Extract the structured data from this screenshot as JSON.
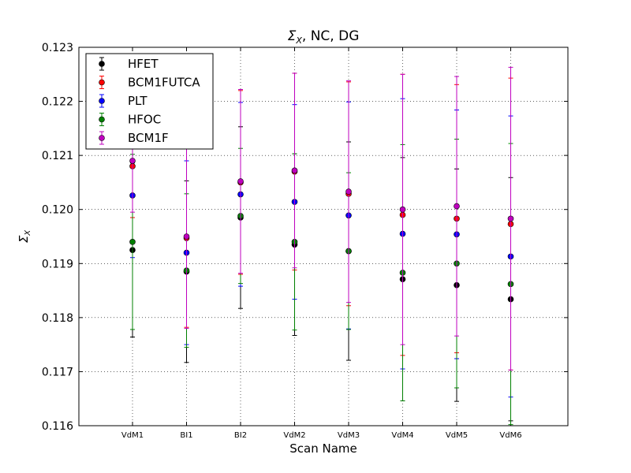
{
  "chart_data": {
    "type": "scatter",
    "title_main": "Σ",
    "title_sub": "X",
    "title_rest": ", NC, DG",
    "xlabel": "Scan Name",
    "ylabel_main": "Σ",
    "ylabel_sub": "X",
    "categories": [
      "VdM1",
      "BI1",
      "BI2",
      "VdM2",
      "VdM3",
      "VdM4",
      "VdM5",
      "VdM6"
    ],
    "ylim": [
      0.116,
      0.123
    ],
    "yticks": [
      "0.116",
      "0.117",
      "0.118",
      "0.119",
      "0.120",
      "0.121",
      "0.122",
      "0.123"
    ],
    "ytick_values": [
      0.116,
      0.117,
      0.118,
      0.119,
      0.12,
      0.121,
      0.122,
      0.123
    ],
    "grid": true,
    "legend_position": "top-left",
    "series": [
      {
        "name": "HFET",
        "color": "#000000",
        "values": [
          0.11925,
          0.11885,
          0.11985,
          0.11935,
          0.11923,
          0.11871,
          0.1186,
          0.11834
        ],
        "errors": [
          0.00161,
          0.00168,
          0.00168,
          0.00168,
          0.00202,
          0.00225,
          0.00215,
          0.00225
        ]
      },
      {
        "name": "BCM1FUTCA",
        "color": "#ff0000",
        "values": [
          0.1208,
          0.11947,
          0.1205,
          0.1207,
          0.12029,
          0.1199,
          0.11983,
          0.11973
        ],
        "errors": [
          0.00095,
          0.00165,
          0.0017,
          0.00182,
          0.00207,
          0.0026,
          0.00248,
          0.0027
        ]
      },
      {
        "name": "PLT",
        "color": "#0000ff",
        "values": [
          0.12026,
          0.1192,
          0.12028,
          0.12014,
          0.11989,
          0.11955,
          0.11954,
          0.11913
        ],
        "errors": [
          0.00115,
          0.0017,
          0.0017,
          0.0018,
          0.0021,
          0.0025,
          0.0023,
          0.0026
        ]
      },
      {
        "name": "HFOC",
        "color": "#008000",
        "values": [
          0.1194,
          0.11887,
          0.11988,
          0.1194,
          0.11923,
          0.11883,
          0.119,
          0.11862
        ],
        "errors": [
          0.00162,
          0.00142,
          0.00125,
          0.00163,
          0.00145,
          0.00237,
          0.0023,
          0.0026
        ]
      },
      {
        "name": "BCM1F",
        "color": "#bf00bf",
        "values": [
          0.1209,
          0.1195,
          0.12052,
          0.12072,
          0.12033,
          0.12,
          0.12006,
          0.11983
        ],
        "errors": [
          0.00095,
          0.0017,
          0.0017,
          0.0018,
          0.00205,
          0.0025,
          0.0024,
          0.0028
        ]
      }
    ]
  }
}
